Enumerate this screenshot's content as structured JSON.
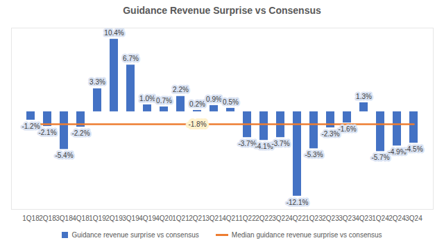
{
  "chart_data": {
    "type": "bar",
    "title": "Guidance Revenue Surprise vs Consensus",
    "categories": [
      "1Q18",
      "2Q18",
      "3Q18",
      "4Q18",
      "1Q19",
      "2Q19",
      "3Q19",
      "4Q19",
      "4Q20",
      "1Q21",
      "2Q21",
      "3Q21",
      "4Q21",
      "1Q22",
      "2Q22",
      "3Q22",
      "4Q22",
      "1Q23",
      "2Q23",
      "3Q23",
      "4Q23",
      "1Q24",
      "2Q24",
      "3Q24"
    ],
    "series": [
      {
        "name": "Guidance revenue surprise vs consensus",
        "type": "bar",
        "color": "#4472c4",
        "values": [
          -1.2,
          -2.1,
          -5.4,
          -2.2,
          3.3,
          10.4,
          6.7,
          1.0,
          0.7,
          2.2,
          0.2,
          0.9,
          0.5,
          -3.7,
          -4.1,
          -3.7,
          -12.1,
          -5.3,
          -2.3,
          -1.6,
          1.3,
          -5.7,
          -4.9,
          -4.5
        ],
        "value_labels": [
          "-1.2%",
          "-2.1%",
          "-5.4%",
          "-2.2%",
          "3.3%",
          "10.4%",
          "6.7%",
          "1.0%",
          "0.7%",
          "2.2%",
          "0.2%",
          "0.9%",
          "0.5%",
          "-3.7%",
          "-4.1%",
          "-3.7%",
          "-12.1%",
          "-5.3%",
          "-2.3%",
          "-1.6%",
          "1.3%",
          "-5.7%",
          "-4.9%",
          "-4.5%"
        ]
      },
      {
        "name": "Median guidance revenue surprise vs consensus",
        "type": "line",
        "color": "#ed7d31",
        "values": [
          -1.8,
          -1.8,
          -1.8,
          -1.8,
          -1.8,
          -1.8,
          -1.8,
          -1.8,
          -1.8,
          -1.8,
          -1.8,
          -1.8,
          -1.8,
          -1.8,
          -1.8,
          -1.8,
          -1.8,
          -1.8,
          -1.8,
          -1.8,
          -1.8,
          -1.8,
          -1.8,
          -1.8
        ],
        "value_labels": [
          null,
          null,
          null,
          null,
          null,
          null,
          null,
          null,
          null,
          null,
          "-1.8%",
          null,
          null,
          null,
          null,
          null,
          null,
          null,
          null,
          null,
          null,
          null,
          null,
          null
        ]
      }
    ],
    "ylim": [
      -14,
      12
    ],
    "yticks": [],
    "tick_labels": "x",
    "grid": false,
    "legend": "bottom",
    "data_labels": true
  }
}
